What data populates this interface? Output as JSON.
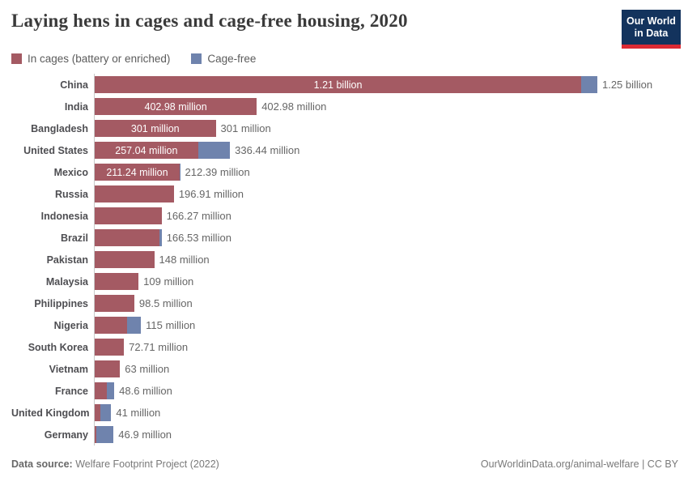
{
  "header": {
    "title": "Laying hens in cages and cage-free housing, 2020",
    "logo_line1": "Our World",
    "logo_line2": "in Data"
  },
  "colors": {
    "cages": "#a45a63",
    "cage_free": "#6f83ad",
    "logo_navy": "#13335d",
    "logo_red": "#dc2a33",
    "axis_line": "#c9c9c9"
  },
  "legend": [
    {
      "label": "In cages (battery or enriched)",
      "color": "#a45a63"
    },
    {
      "label": "Cage-free",
      "color": "#6f83ad"
    }
  ],
  "chart_data": {
    "type": "bar",
    "orientation": "horizontal",
    "title": "Laying hens in cages and cage-free housing, 2020",
    "unit": "laying hens",
    "xlim_millions": [
      0,
      1250
    ],
    "grid": false,
    "legend_position": "top-left",
    "series_names": [
      "In cages (battery or enriched)",
      "Cage-free"
    ],
    "note": "cages_millions / cage_free_millions are the two stacked segments; unlabeled segment sizes estimated from bar pixels",
    "rows": [
      {
        "country": "China",
        "cages_millions": 1210,
        "cage_free_millions": 40,
        "bar_label": "1.21 billion",
        "total_label": "1.25 billion"
      },
      {
        "country": "India",
        "cages_millions": 402.98,
        "cage_free_millions": 0,
        "bar_label": "402.98 million",
        "total_label": "402.98 million"
      },
      {
        "country": "Bangladesh",
        "cages_millions": 301,
        "cage_free_millions": 0,
        "bar_label": "301 million",
        "total_label": "301 million"
      },
      {
        "country": "United States",
        "cages_millions": 257.04,
        "cage_free_millions": 79.4,
        "bar_label": "257.04 million",
        "total_label": "336.44 million"
      },
      {
        "country": "Mexico",
        "cages_millions": 211.24,
        "cage_free_millions": 1.15,
        "bar_label": "211.24 million",
        "total_label": "212.39 million"
      },
      {
        "country": "Russia",
        "cages_millions": 196.91,
        "cage_free_millions": 0,
        "bar_label": "",
        "total_label": "196.91 million"
      },
      {
        "country": "Indonesia",
        "cages_millions": 166.27,
        "cage_free_millions": 0,
        "bar_label": "",
        "total_label": "166.27 million"
      },
      {
        "country": "Brazil",
        "cages_millions": 160.5,
        "cage_free_millions": 6,
        "bar_label": "",
        "total_label": "166.53 million"
      },
      {
        "country": "Pakistan",
        "cages_millions": 148,
        "cage_free_millions": 0,
        "bar_label": "",
        "total_label": "148 million"
      },
      {
        "country": "Malaysia",
        "cages_millions": 109,
        "cage_free_millions": 0,
        "bar_label": "",
        "total_label": "109 million"
      },
      {
        "country": "Philippines",
        "cages_millions": 98.5,
        "cage_free_millions": 0,
        "bar_label": "",
        "total_label": "98.5 million"
      },
      {
        "country": "Nigeria",
        "cages_millions": 80,
        "cage_free_millions": 35,
        "bar_label": "",
        "total_label": "115 million"
      },
      {
        "country": "South Korea",
        "cages_millions": 72.71,
        "cage_free_millions": 0,
        "bar_label": "",
        "total_label": "72.71 million"
      },
      {
        "country": "Vietnam",
        "cages_millions": 63,
        "cage_free_millions": 0,
        "bar_label": "",
        "total_label": "63 million"
      },
      {
        "country": "France",
        "cages_millions": 30.6,
        "cage_free_millions": 18,
        "bar_label": "",
        "total_label": "48.6 million"
      },
      {
        "country": "United Kingdom",
        "cages_millions": 14.8,
        "cage_free_millions": 26.2,
        "bar_label": "",
        "total_label": "41 million"
      },
      {
        "country": "Germany",
        "cages_millions": 4.4,
        "cage_free_millions": 42.5,
        "bar_label": "",
        "total_label": "46.9 million"
      }
    ]
  },
  "footer": {
    "source_label": "Data source:",
    "source_text": " Welfare Footprint Project (2022)",
    "credit": "OurWorldinData.org/animal-welfare | CC BY"
  }
}
